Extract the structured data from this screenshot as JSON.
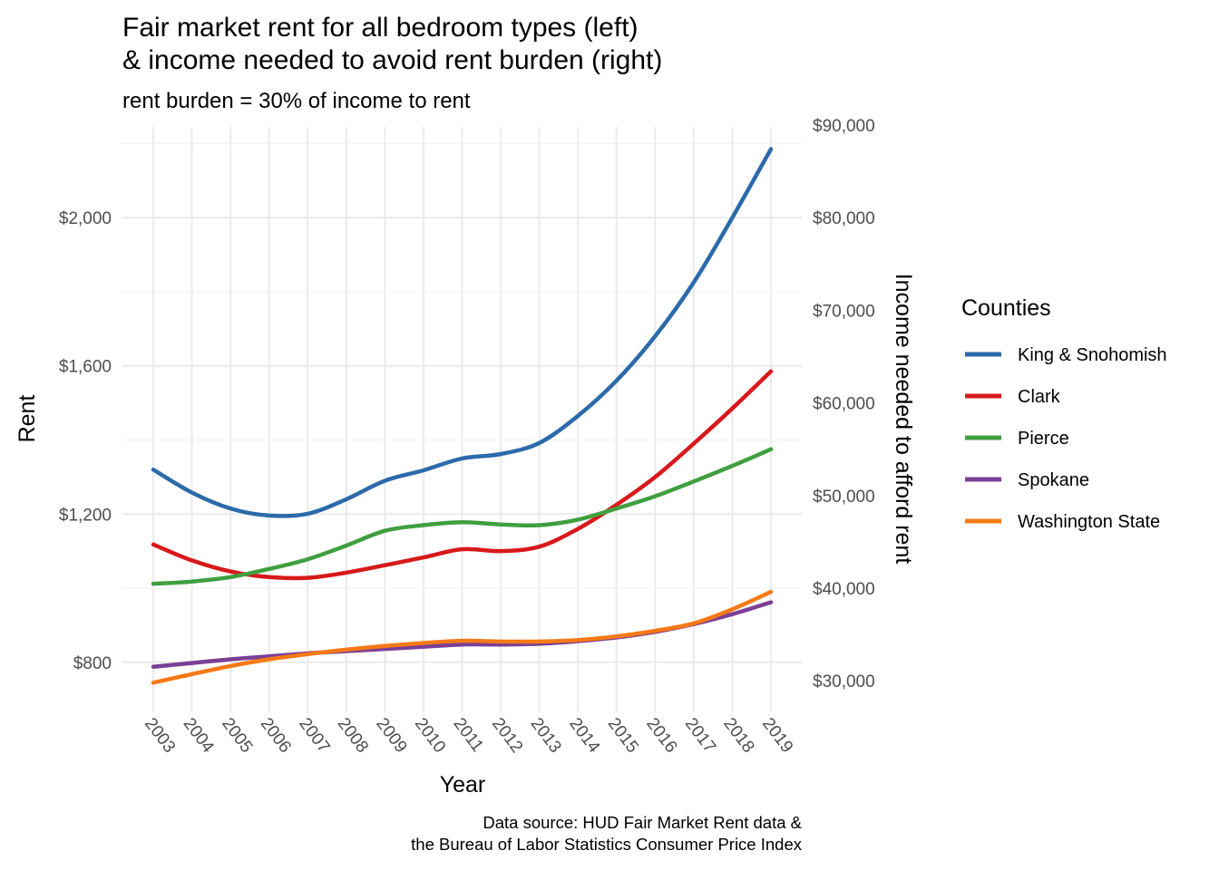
{
  "chart_data": {
    "type": "line",
    "title_lines": [
      "Fair market rent for all bedroom types (left)",
      "& income needed to avoid rent burden (right)"
    ],
    "subtitle": "rent burden = 30% of income to rent",
    "xlabel": "Year",
    "ylabel": "Rent",
    "y2label": "Income needed to afford rent",
    "caption_lines": [
      "Data source: HUD Fair Market Rent data &",
      "the Bureau of Labor Statistics Consumer Price Index"
    ],
    "x": [
      2003,
      2004,
      2005,
      2006,
      2007,
      2008,
      2009,
      2010,
      2011,
      2012,
      2013,
      2014,
      2015,
      2016,
      2017,
      2018,
      2019
    ],
    "x_tick_labels": [
      "2003",
      "2004",
      "2005",
      "2006",
      "2007",
      "2008",
      "2009",
      "2010",
      "2011",
      "2012",
      "2013",
      "2014",
      "2015",
      "2016",
      "2017",
      "2018",
      "2019"
    ],
    "ylim": [
      665,
      2245
    ],
    "y_ticks": [
      800,
      1200,
      1600,
      2000
    ],
    "y_tick_labels": [
      "$800",
      "$1,200",
      "$1,600",
      "$2,000"
    ],
    "y2_ticks": [
      30000,
      40000,
      50000,
      60000,
      70000,
      80000,
      90000
    ],
    "y2_tick_labels": [
      "$30,000",
      "$40,000",
      "$50,000",
      "$60,000",
      "$70,000",
      "$80,000",
      "$90,000"
    ],
    "grid": true,
    "legend": {
      "title": "Counties",
      "position": "right"
    },
    "series": [
      {
        "name": "King & Snohomish",
        "color": "#2c6aaa",
        "values": [
          1320,
          1258,
          1215,
          1196,
          1201,
          1240,
          1290,
          1318,
          1350,
          1362,
          1392,
          1465,
          1560,
          1680,
          1825,
          2000,
          2185
        ]
      },
      {
        "name": "Clark",
        "color": "#d7191c",
        "values": [
          1118,
          1075,
          1045,
          1030,
          1028,
          1042,
          1062,
          1083,
          1105,
          1100,
          1112,
          1160,
          1225,
          1300,
          1390,
          1485,
          1585
        ]
      },
      {
        "name": "Pierce",
        "color": "#3f9f3f",
        "values": [
          1012,
          1018,
          1030,
          1052,
          1078,
          1115,
          1155,
          1170,
          1178,
          1172,
          1170,
          1185,
          1215,
          1248,
          1288,
          1330,
          1375
        ]
      },
      {
        "name": "Spokane",
        "color": "#7b3f95",
        "values": [
          788,
          798,
          808,
          816,
          824,
          830,
          836,
          842,
          848,
          848,
          850,
          857,
          867,
          882,
          903,
          930,
          962
        ]
      },
      {
        "name": "Washington State",
        "color": "#f57916",
        "values": [
          745,
          768,
          790,
          808,
          822,
          834,
          844,
          852,
          858,
          856,
          856,
          860,
          870,
          885,
          905,
          943,
          990
        ]
      }
    ]
  }
}
